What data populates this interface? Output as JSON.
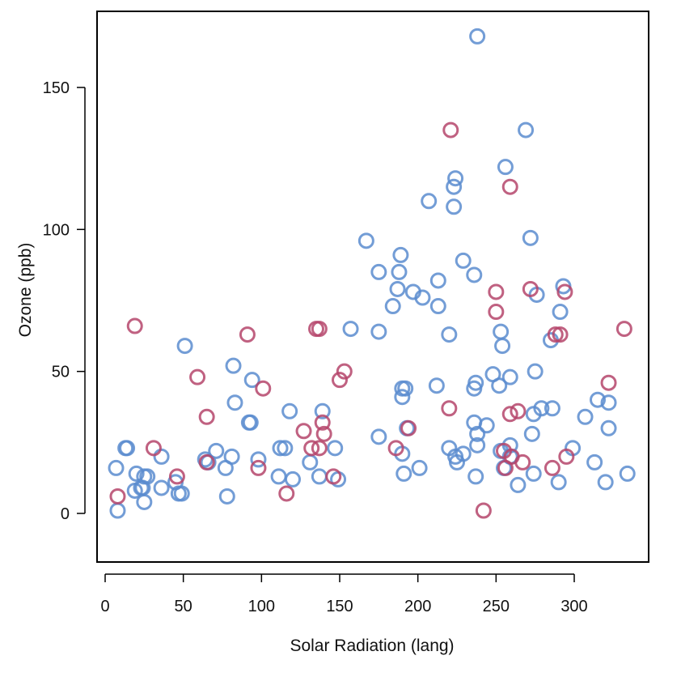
{
  "chart_data": {
    "type": "scatter",
    "title": "",
    "xlabel": "Solar Radiation (lang)",
    "ylabel": "Ozone (ppb)",
    "xlim": [
      -5,
      345
    ],
    "ylim": [
      -18,
      177
    ],
    "x_ticks": [
      0,
      50,
      100,
      150,
      200,
      250,
      300
    ],
    "y_ticks": [
      0,
      50,
      100,
      150
    ],
    "grid": false,
    "legend": "none",
    "marker": "open-circle",
    "colors": {
      "blue": "#5b8ccf",
      "red": "#b5456b",
      "axis": "#000000"
    },
    "series": [
      {
        "color": "#5b8ccf",
        "points": [
          [
            238,
            168
          ],
          [
            269,
            135
          ],
          [
            256,
            122
          ],
          [
            224,
            118
          ],
          [
            223,
            115
          ],
          [
            223,
            108
          ],
          [
            207,
            110
          ],
          [
            272,
            97
          ],
          [
            167,
            96
          ],
          [
            189,
            91
          ],
          [
            229,
            89
          ],
          [
            175,
            85
          ],
          [
            188,
            85
          ],
          [
            236,
            84
          ],
          [
            213,
            82
          ],
          [
            293,
            80
          ],
          [
            187,
            79
          ],
          [
            197,
            78
          ],
          [
            276,
            77
          ],
          [
            203,
            76
          ],
          [
            184,
            73
          ],
          [
            213,
            73
          ],
          [
            291,
            71
          ],
          [
            157,
            65
          ],
          [
            253,
            64
          ],
          [
            175,
            64
          ],
          [
            220,
            63
          ],
          [
            285,
            61
          ],
          [
            254,
            59
          ],
          [
            51,
            59
          ],
          [
            82,
            52
          ],
          [
            275,
            50
          ],
          [
            248,
            49
          ],
          [
            94,
            47
          ],
          [
            237,
            46
          ],
          [
            259,
            48
          ],
          [
            190,
            44
          ],
          [
            192,
            44
          ],
          [
            236,
            44
          ],
          [
            212,
            45
          ],
          [
            252,
            45
          ],
          [
            190,
            41
          ],
          [
            315,
            40
          ],
          [
            322,
            39
          ],
          [
            83,
            39
          ],
          [
            139,
            36
          ],
          [
            274,
            35
          ],
          [
            279,
            37
          ],
          [
            286,
            37
          ],
          [
            118,
            36
          ],
          [
            307,
            34
          ],
          [
            92,
            32
          ],
          [
            93,
            32
          ],
          [
            236,
            32
          ],
          [
            244,
            31
          ],
          [
            322,
            30
          ],
          [
            193,
            30
          ],
          [
            238,
            28
          ],
          [
            273,
            28
          ],
          [
            175,
            27
          ],
          [
            71,
            22
          ],
          [
            112,
            23
          ],
          [
            147,
            23
          ],
          [
            115,
            23
          ],
          [
            13,
            23
          ],
          [
            14,
            23
          ],
          [
            220,
            23
          ],
          [
            299,
            23
          ],
          [
            253,
            22
          ],
          [
            259,
            24
          ],
          [
            238,
            24
          ],
          [
            81,
            20
          ],
          [
            190,
            21
          ],
          [
            27,
            13
          ],
          [
            36,
            20
          ],
          [
            98,
            19
          ],
          [
            229,
            21
          ],
          [
            224,
            20
          ],
          [
            225,
            18
          ],
          [
            64,
            19
          ],
          [
            313,
            18
          ],
          [
            259,
            20
          ],
          [
            131,
            18
          ],
          [
            77,
            16
          ],
          [
            7,
            16
          ],
          [
            201,
            16
          ],
          [
            111,
            13
          ],
          [
            255,
            16
          ],
          [
            137,
            13
          ],
          [
            20,
            14
          ],
          [
            23,
            9
          ],
          [
            25,
            13
          ],
          [
            36,
            9
          ],
          [
            19,
            8
          ],
          [
            47,
            7
          ],
          [
            49,
            7
          ],
          [
            45,
            11
          ],
          [
            24,
            9
          ],
          [
            274,
            14
          ],
          [
            237,
            13
          ],
          [
            334,
            14
          ],
          [
            78,
            6
          ],
          [
            264,
            10
          ],
          [
            320,
            11
          ],
          [
            8,
            1
          ],
          [
            25,
            4
          ],
          [
            120,
            12
          ],
          [
            191,
            14
          ],
          [
            149,
            12
          ],
          [
            290,
            11
          ],
          [
            66,
            18
          ]
        ]
      },
      {
        "color": "#b5456b",
        "points": [
          [
            221,
            135
          ],
          [
            259,
            115
          ],
          [
            250,
            78
          ],
          [
            272,
            79
          ],
          [
            294,
            78
          ],
          [
            250,
            71
          ],
          [
            19,
            66
          ],
          [
            91,
            63
          ],
          [
            135,
            65
          ],
          [
            137,
            65
          ],
          [
            332,
            65
          ],
          [
            288,
            63
          ],
          [
            291,
            63
          ],
          [
            153,
            50
          ],
          [
            59,
            48
          ],
          [
            150,
            47
          ],
          [
            322,
            46
          ],
          [
            101,
            44
          ],
          [
            220,
            37
          ],
          [
            259,
            35
          ],
          [
            264,
            36
          ],
          [
            65,
            34
          ],
          [
            139,
            32
          ],
          [
            194,
            30
          ],
          [
            127,
            29
          ],
          [
            140,
            28
          ],
          [
            31,
            23
          ],
          [
            132,
            23
          ],
          [
            137,
            23
          ],
          [
            186,
            23
          ],
          [
            255,
            22
          ],
          [
            260,
            20
          ],
          [
            295,
            20
          ],
          [
            65,
            18
          ],
          [
            267,
            18
          ],
          [
            98,
            16
          ],
          [
            256,
            16
          ],
          [
            286,
            16
          ],
          [
            146,
            13
          ],
          [
            46,
            13
          ],
          [
            116,
            7
          ],
          [
            8,
            6
          ],
          [
            242,
            1
          ]
        ]
      }
    ]
  }
}
